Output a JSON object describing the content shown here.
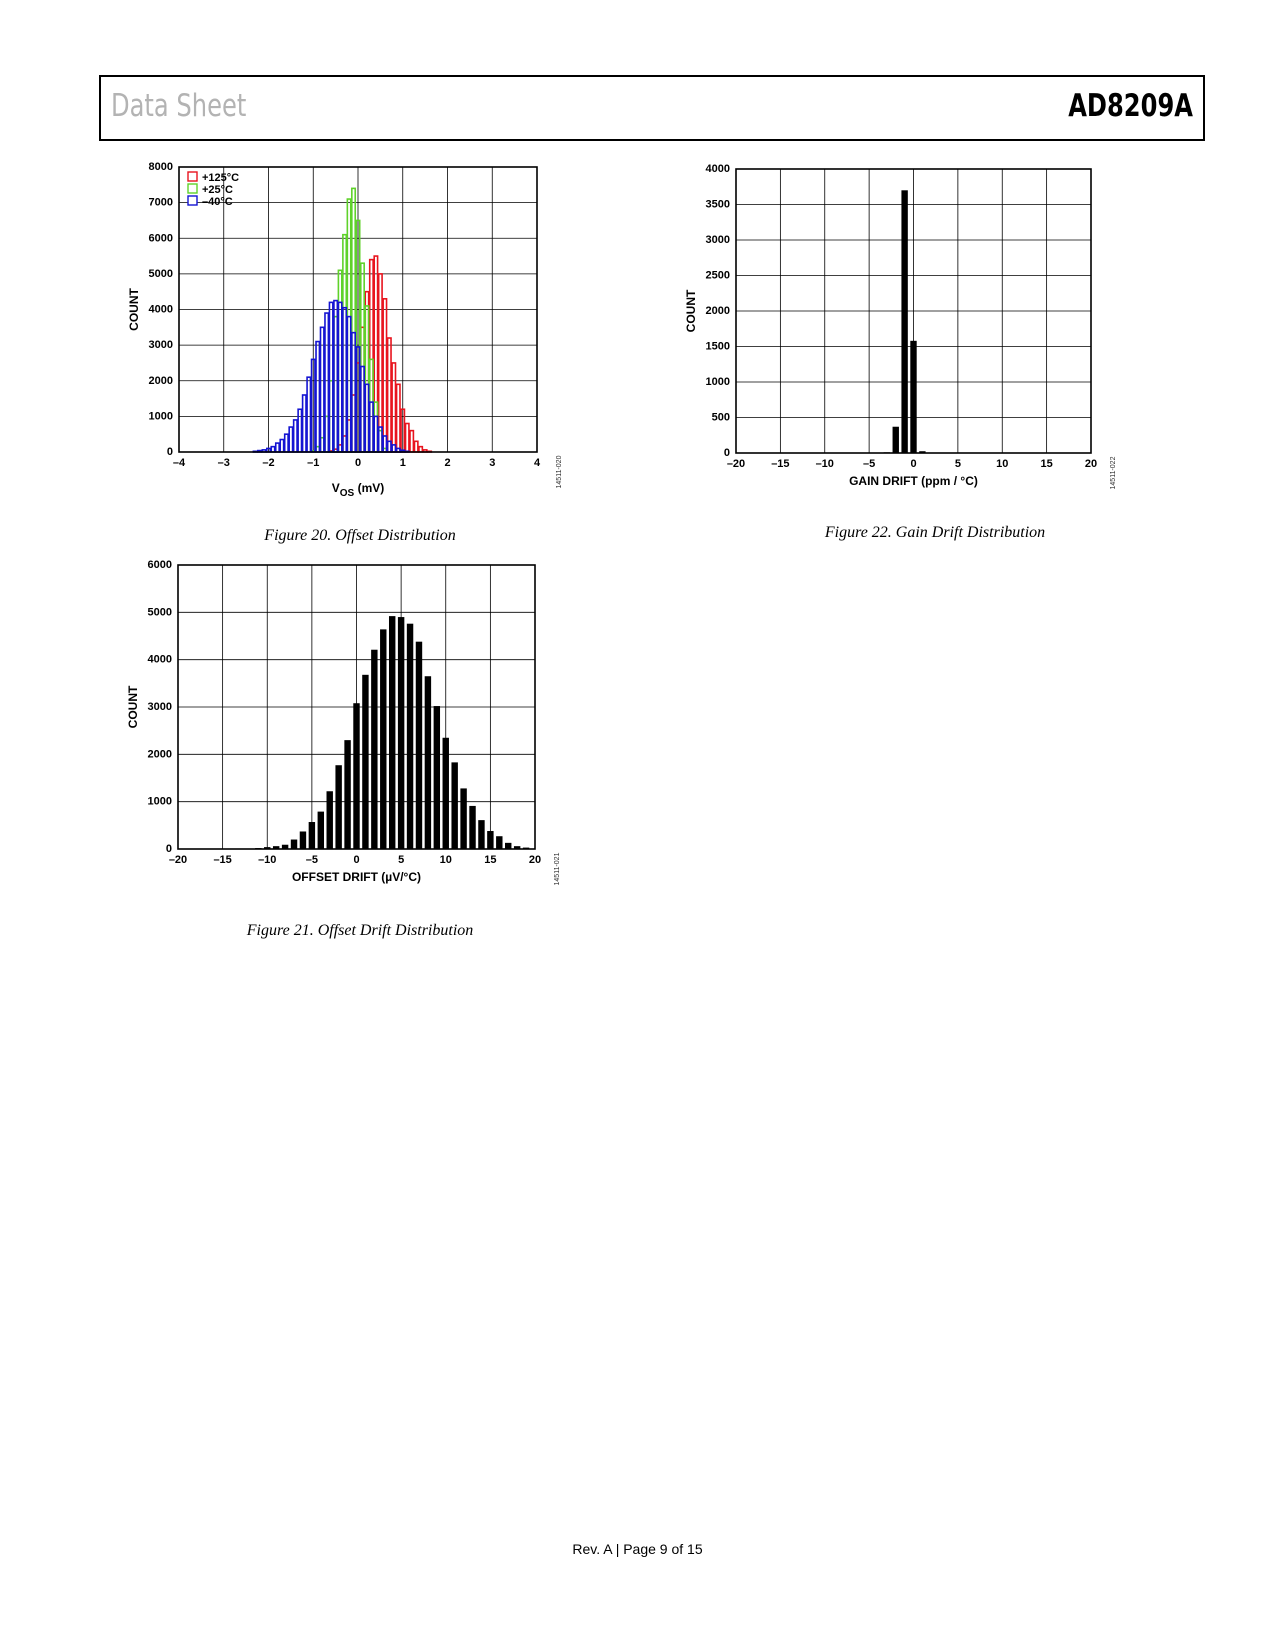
{
  "header": {
    "doc_title": "Data Sheet",
    "part_number": "AD8209A"
  },
  "footer": {
    "page_info": "Rev. A | Page 9 of 15"
  },
  "figures": {
    "fig20": {
      "caption": "Figure 20. Offset Distribution",
      "code": "14511-020"
    },
    "fig21": {
      "caption": "Figure 21. Offset Drift Distribution",
      "code": "14511-021"
    },
    "fig22": {
      "caption": "Figure 22. Gain Drift Distribution",
      "code": "14511-022"
    }
  },
  "chart_data": [
    {
      "id": "fig20",
      "type": "bar",
      "style": "outline-histogram",
      "xlabel_main": "V",
      "xlabel_sub": "OS",
      "xlabel_unit": " (mV)",
      "ylabel": "COUNT",
      "xlim": [
        -4,
        4
      ],
      "ylim": [
        0,
        8000
      ],
      "xticks": [
        -4,
        -3,
        -2,
        -1,
        0,
        1,
        2,
        3,
        4
      ],
      "xtick_labels": [
        "–4",
        "–3",
        "–2",
        "–1",
        "0",
        "1",
        "2",
        "3",
        "4"
      ],
      "yticks": [
        0,
        1000,
        2000,
        3000,
        4000,
        5000,
        6000,
        7000,
        8000
      ],
      "ytick_labels": [
        "0",
        "1000",
        "2000",
        "3000",
        "4000",
        "5000",
        "6000",
        "7000",
        "8000"
      ],
      "grid": true,
      "legend_position": "top-left",
      "bin_width": 0.1,
      "series": [
        {
          "name": "+125°C",
          "color": "#e8141e",
          "x": [
            -0.6,
            -0.5,
            -0.4,
            -0.3,
            -0.2,
            -0.1,
            0.0,
            0.1,
            0.2,
            0.3,
            0.4,
            0.5,
            0.6,
            0.7,
            0.8,
            0.9,
            1.0,
            1.1,
            1.2,
            1.3,
            1.4,
            1.5,
            1.6
          ],
          "values": [
            30,
            80,
            200,
            450,
            900,
            1600,
            2500,
            3500,
            4500,
            5400,
            5500,
            5000,
            4300,
            3200,
            2500,
            1900,
            1200,
            800,
            600,
            300,
            150,
            60,
            20
          ]
        },
        {
          "name": "+25°C",
          "color": "#5fd22a",
          "x": [
            -1.0,
            -0.9,
            -0.8,
            -0.7,
            -0.6,
            -0.5,
            -0.4,
            -0.3,
            -0.2,
            -0.1,
            0.0,
            0.1,
            0.2,
            0.3,
            0.4,
            0.5,
            0.6
          ],
          "values": [
            30,
            150,
            400,
            1000,
            2000,
            3800,
            5100,
            6100,
            7100,
            7400,
            6500,
            5300,
            4100,
            2600,
            1400,
            600,
            100
          ]
        },
        {
          "name": "–40°C",
          "color": "#1414d2",
          "x": [
            -2.3,
            -2.2,
            -2.1,
            -2.0,
            -1.9,
            -1.8,
            -1.7,
            -1.6,
            -1.5,
            -1.4,
            -1.3,
            -1.2,
            -1.1,
            -1.0,
            -0.9,
            -0.8,
            -0.7,
            -0.6,
            -0.5,
            -0.4,
            -0.3,
            -0.2,
            -0.1,
            0.0,
            0.1,
            0.2,
            0.3,
            0.4,
            0.5,
            0.6,
            0.7,
            0.8,
            0.9,
            1.0,
            1.1
          ],
          "values": [
            20,
            40,
            60,
            100,
            150,
            250,
            350,
            500,
            700,
            900,
            1200,
            1600,
            2100,
            2600,
            3100,
            3500,
            3900,
            4200,
            4250,
            4200,
            4050,
            3800,
            3350,
            2950,
            2400,
            1900,
            1400,
            1000,
            700,
            450,
            300,
            200,
            100,
            50,
            20
          ]
        }
      ]
    },
    {
      "id": "fig21",
      "type": "bar",
      "xlabel": "OFFSET DRIFT (µV/°C)",
      "ylabel": "COUNT",
      "xlim": [
        -20,
        20
      ],
      "ylim": [
        0,
        6000
      ],
      "xticks": [
        -20,
        -15,
        -10,
        -5,
        0,
        5,
        10,
        15,
        20
      ],
      "xtick_labels": [
        "–20",
        "–15",
        "–10",
        "–5",
        "0",
        "5",
        "10",
        "15",
        "20"
      ],
      "yticks": [
        0,
        1000,
        2000,
        3000,
        4000,
        5000,
        6000
      ],
      "ytick_labels": [
        "0",
        "1000",
        "2000",
        "3000",
        "4000",
        "5000",
        "6000"
      ],
      "grid": true,
      "series": [
        {
          "color": "#000000",
          "x": [
            -11,
            -10,
            -9,
            -8,
            -7,
            -6,
            -5,
            -4,
            -3,
            -2,
            -1,
            0,
            1,
            2,
            3,
            4,
            5,
            6,
            7,
            8,
            9,
            10,
            11,
            12,
            13,
            14,
            15,
            16,
            17,
            18,
            19
          ],
          "values": [
            20,
            40,
            60,
            90,
            200,
            370,
            570,
            790,
            1220,
            1770,
            2300,
            3080,
            3680,
            4210,
            4640,
            4920,
            4900,
            4760,
            4380,
            3650,
            3020,
            2350,
            1830,
            1280,
            910,
            610,
            380,
            270,
            130,
            60,
            30
          ]
        }
      ]
    },
    {
      "id": "fig22",
      "type": "bar",
      "xlabel": "GAIN DRIFT (ppm / °C)",
      "ylabel": "COUNT",
      "xlim": [
        -20,
        20
      ],
      "ylim": [
        0,
        4000
      ],
      "xticks": [
        -20,
        -15,
        -10,
        -5,
        0,
        5,
        10,
        15,
        20
      ],
      "xtick_labels": [
        "–20",
        "–15",
        "–10",
        "–5",
        "0",
        "5",
        "10",
        "15",
        "20"
      ],
      "yticks": [
        0,
        500,
        1000,
        1500,
        2000,
        2500,
        3000,
        3500,
        4000
      ],
      "ytick_labels": [
        "0",
        "500",
        "1000",
        "1500",
        "2000",
        "2500",
        "3000",
        "3500",
        "4000"
      ],
      "grid": true,
      "series": [
        {
          "color": "#000000",
          "x": [
            -3,
            -2,
            -1,
            0,
            1
          ],
          "values": [
            10,
            370,
            3700,
            1580,
            25
          ]
        }
      ]
    }
  ]
}
